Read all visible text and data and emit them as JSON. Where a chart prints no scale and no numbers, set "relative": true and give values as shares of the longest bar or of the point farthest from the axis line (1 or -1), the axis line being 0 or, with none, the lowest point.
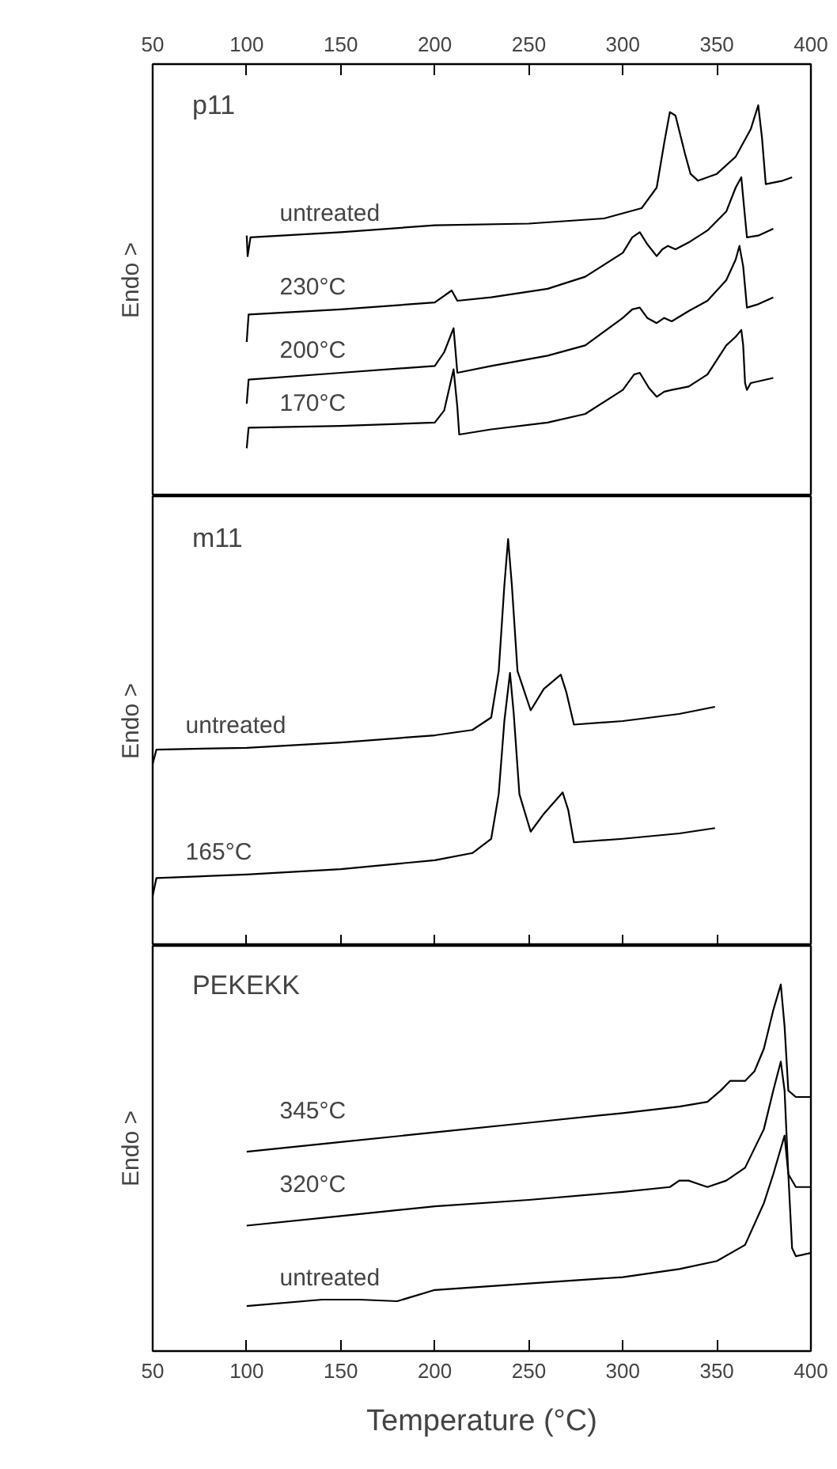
{
  "chart_data": [
    {
      "type": "line",
      "title": "p11",
      "ylabel": "Endo >",
      "relative": true,
      "xlim": [
        50,
        400
      ],
      "xticks": [
        50,
        100,
        150,
        200,
        250,
        300,
        350,
        400
      ],
      "tick_labels": "x",
      "grid": false,
      "series": [
        {
          "name": "untreated",
          "color": "#000000",
          "x": [
            100,
            100.5,
            102,
            150,
            200,
            250,
            290,
            310,
            318,
            322,
            325,
            328,
            333,
            336,
            340,
            350,
            360,
            368,
            372,
            374,
            376,
            385,
            390
          ],
          "values": [
            0.62,
            0.56,
            0.615,
            0.63,
            0.65,
            0.655,
            0.67,
            0.7,
            0.76,
            0.89,
            0.98,
            0.97,
            0.86,
            0.8,
            0.78,
            0.8,
            0.85,
            0.93,
            1.0,
            0.905,
            0.77,
            0.78,
            0.79
          ]
        },
        {
          "name": "230°C",
          "color": "#000000",
          "x": [
            100,
            101,
            150,
            200,
            209,
            212,
            230,
            260,
            280,
            300,
            305,
            309,
            313,
            318,
            321,
            324,
            328,
            335,
            345,
            355,
            360,
            363,
            364,
            366,
            372,
            380
          ],
          "values": [
            0.31,
            0.39,
            0.405,
            0.425,
            0.46,
            0.43,
            0.44,
            0.465,
            0.5,
            0.57,
            0.615,
            0.63,
            0.595,
            0.56,
            0.58,
            0.59,
            0.58,
            0.6,
            0.635,
            0.69,
            0.76,
            0.79,
            0.73,
            0.615,
            0.62,
            0.64
          ]
        },
        {
          "name": "200°C",
          "color": "#000000",
          "x": [
            100,
            101,
            150,
            200,
            205,
            210,
            212,
            230,
            260,
            280,
            300,
            305,
            309,
            313,
            318,
            322,
            326,
            335,
            345,
            355,
            360,
            362,
            364,
            366,
            372,
            380
          ],
          "values": [
            0.13,
            0.2,
            0.22,
            0.24,
            0.28,
            0.35,
            0.22,
            0.24,
            0.27,
            0.3,
            0.38,
            0.405,
            0.41,
            0.38,
            0.365,
            0.38,
            0.37,
            0.4,
            0.43,
            0.49,
            0.55,
            0.59,
            0.53,
            0.41,
            0.42,
            0.44
          ]
        },
        {
          "name": "170°C",
          "color": "#000000",
          "x": [
            100,
            101,
            150,
            200,
            205,
            210,
            212,
            213,
            230,
            260,
            280,
            300,
            306,
            309,
            314,
            318,
            322,
            326,
            335,
            345,
            355,
            360,
            363,
            364,
            365,
            366,
            368,
            380
          ],
          "values": [
            0,
            0.06,
            0.065,
            0.075,
            0.11,
            0.23,
            0.12,
            0.04,
            0.055,
            0.075,
            0.1,
            0.17,
            0.215,
            0.22,
            0.175,
            0.15,
            0.165,
            0.17,
            0.18,
            0.215,
            0.3,
            0.325,
            0.345,
            0.3,
            0.19,
            0.17,
            0.19,
            0.205
          ]
        }
      ]
    },
    {
      "type": "line",
      "title": "m11",
      "ylabel": "Endo >",
      "relative": true,
      "xlim": [
        50,
        400
      ],
      "xticks": [
        {
          "value": 100,
          "label": null
        },
        {
          "value": 150,
          "label": null
        },
        {
          "value": 200,
          "label": null
        },
        {
          "value": 250,
          "label": null
        },
        {
          "value": 300,
          "label": null
        },
        {
          "value": 350,
          "label": null
        }
      ],
      "tick_labels": false,
      "grid": false,
      "series": [
        {
          "name": "untreated",
          "color": "#000000",
          "x": [
            50,
            52,
            100,
            150,
            200,
            220,
            230,
            234,
            237,
            239,
            241,
            244,
            251,
            258,
            267,
            270,
            274,
            300,
            330,
            349
          ],
          "values": [
            0.37,
            0.41,
            0.415,
            0.43,
            0.45,
            0.465,
            0.5,
            0.63,
            0.87,
            1.0,
            0.87,
            0.63,
            0.52,
            0.58,
            0.62,
            0.57,
            0.48,
            0.49,
            0.51,
            0.53
          ]
        },
        {
          "name": "165°C",
          "color": "#000000",
          "x": [
            50,
            52,
            100,
            150,
            200,
            220,
            230,
            234,
            237,
            240,
            242,
            245,
            251,
            258,
            268,
            271,
            274,
            300,
            330,
            349
          ],
          "values": [
            0,
            0.05,
            0.06,
            0.075,
            0.1,
            0.12,
            0.16,
            0.285,
            0.49,
            0.625,
            0.51,
            0.285,
            0.18,
            0.23,
            0.29,
            0.24,
            0.15,
            0.16,
            0.175,
            0.19
          ]
        }
      ]
    },
    {
      "type": "line",
      "title": "PEKEKK",
      "ylabel": "Endo >",
      "xlabel": "Temperature (°C)",
      "relative": true,
      "xlim": [
        50,
        400
      ],
      "xticks": [
        50,
        100,
        150,
        200,
        250,
        300,
        350,
        400
      ],
      "tick_labels": "x",
      "grid": false,
      "series": [
        {
          "name": "345°C",
          "color": "#000000",
          "x": [
            100,
            150,
            200,
            250,
            300,
            330,
            345,
            352,
            357,
            360,
            365,
            370,
            375,
            380,
            384,
            386,
            388,
            392,
            400
          ],
          "values": [
            0.48,
            0.51,
            0.54,
            0.57,
            0.6,
            0.62,
            0.635,
            0.67,
            0.7,
            0.7,
            0.7,
            0.73,
            0.8,
            0.92,
            1.0,
            0.87,
            0.67,
            0.65,
            0.65
          ]
        },
        {
          "name": "320°C",
          "color": "#000000",
          "x": [
            100,
            150,
            200,
            250,
            300,
            325,
            330,
            335,
            340,
            345,
            355,
            365,
            375,
            380,
            384,
            386,
            388,
            392,
            400
          ],
          "values": [
            0.25,
            0.28,
            0.31,
            0.33,
            0.355,
            0.37,
            0.39,
            0.39,
            0.38,
            0.37,
            0.39,
            0.43,
            0.55,
            0.67,
            0.76,
            0.67,
            0.41,
            0.37,
            0.37
          ]
        },
        {
          "name": "untreated",
          "color": "#000000",
          "x": [
            100,
            140,
            160,
            180,
            200,
            250,
            300,
            330,
            350,
            365,
            375,
            380,
            386,
            388,
            390,
            392,
            400
          ],
          "values": [
            0,
            0.02,
            0.02,
            0.015,
            0.05,
            0.07,
            0.09,
            0.115,
            0.14,
            0.19,
            0.32,
            0.41,
            0.53,
            0.41,
            0.18,
            0.155,
            0.165
          ]
        }
      ]
    }
  ]
}
